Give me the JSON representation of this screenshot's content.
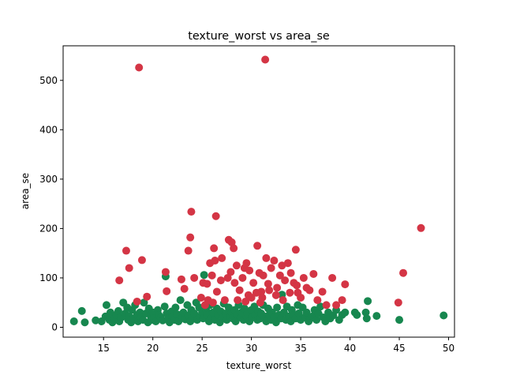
{
  "chart_data": {
    "type": "scatter",
    "title": "texture_worst vs area_se",
    "xlabel": "texture_worst",
    "ylabel": "area_se",
    "xlim": [
      10.9,
      50.6
    ],
    "ylim": [
      -20,
      570
    ],
    "xticks": [
      15,
      20,
      25,
      30,
      35,
      40,
      45,
      50
    ],
    "yticks": [
      0,
      100,
      200,
      300,
      400,
      500
    ],
    "grid": false,
    "legend": "none",
    "colors": {
      "red": "#d43545",
      "green": "#17874f"
    },
    "series": [
      {
        "color": "#17874f",
        "points": [
          [
            12.0,
            12
          ],
          [
            12.8,
            33
          ],
          [
            13.1,
            10
          ],
          [
            14.2,
            14
          ],
          [
            14.8,
            12
          ],
          [
            15.2,
            22
          ],
          [
            15.3,
            45
          ],
          [
            15.6,
            15
          ],
          [
            15.7,
            30
          ],
          [
            15.9,
            10
          ],
          [
            16.1,
            18
          ],
          [
            16.3,
            25
          ],
          [
            16.5,
            33
          ],
          [
            16.6,
            12
          ],
          [
            16.8,
            20
          ],
          [
            17.0,
            50
          ],
          [
            17.2,
            28
          ],
          [
            17.4,
            40
          ],
          [
            17.5,
            15
          ],
          [
            17.6,
            22
          ],
          [
            17.8,
            10
          ],
          [
            17.9,
            35
          ],
          [
            18.0,
            18
          ],
          [
            18.2,
            45
          ],
          [
            18.4,
            25
          ],
          [
            18.5,
            12
          ],
          [
            18.7,
            30
          ],
          [
            18.8,
            20
          ],
          [
            19.0,
            15
          ],
          [
            19.1,
            50
          ],
          [
            19.3,
            28
          ],
          [
            19.5,
            10
          ],
          [
            19.6,
            38
          ],
          [
            19.8,
            22
          ],
          [
            19.9,
            15
          ],
          [
            20.0,
            30
          ],
          [
            20.1,
            18
          ],
          [
            20.3,
            12
          ],
          [
            20.5,
            35
          ],
          [
            20.6,
            25
          ],
          [
            20.8,
            20
          ],
          [
            21.0,
            14
          ],
          [
            21.2,
            42
          ],
          [
            21.3,
            103
          ],
          [
            21.4,
            28
          ],
          [
            21.6,
            18
          ],
          [
            21.7,
            10
          ],
          [
            21.9,
            32
          ],
          [
            22.0,
            22
          ],
          [
            22.2,
            15
          ],
          [
            22.3,
            40
          ],
          [
            22.5,
            26
          ],
          [
            22.6,
            12
          ],
          [
            22.8,
            55
          ],
          [
            23.0,
            20
          ],
          [
            23.1,
            30
          ],
          [
            23.3,
            16
          ],
          [
            23.5,
            45
          ],
          [
            23.6,
            24
          ],
          [
            23.8,
            12
          ],
          [
            23.9,
            35
          ],
          [
            24.0,
            20
          ],
          [
            24.2,
            28
          ],
          [
            24.4,
            50
          ],
          [
            24.5,
            15
          ],
          [
            24.7,
            40
          ],
          [
            24.8,
            22
          ],
          [
            25.0,
            30
          ],
          [
            25.1,
            18
          ],
          [
            25.2,
            106
          ],
          [
            25.4,
            35
          ],
          [
            25.5,
            25
          ],
          [
            25.7,
            12
          ],
          [
            25.8,
            45
          ],
          [
            26.0,
            20
          ],
          [
            26.1,
            30
          ],
          [
            26.3,
            15
          ],
          [
            26.5,
            38
          ],
          [
            26.6,
            25
          ],
          [
            26.8,
            10
          ],
          [
            26.9,
            32
          ],
          [
            27.1,
            20
          ],
          [
            27.2,
            48
          ],
          [
            27.4,
            28
          ],
          [
            27.5,
            15
          ],
          [
            27.7,
            40
          ],
          [
            27.8,
            22
          ],
          [
            28.0,
            30
          ],
          [
            28.1,
            18
          ],
          [
            28.3,
            35
          ],
          [
            28.4,
            12
          ],
          [
            28.6,
            25
          ],
          [
            28.7,
            45
          ],
          [
            28.9,
            20
          ],
          [
            29.0,
            30
          ],
          [
            29.2,
            15
          ],
          [
            29.3,
            38
          ],
          [
            29.5,
            22
          ],
          [
            29.6,
            28
          ],
          [
            29.8,
            12
          ],
          [
            30.0,
            35
          ],
          [
            30.1,
            20
          ],
          [
            30.3,
            42
          ],
          [
            30.4,
            25
          ],
          [
            30.6,
            15
          ],
          [
            30.7,
            32
          ],
          [
            30.9,
            18
          ],
          [
            31.0,
            28
          ],
          [
            31.2,
            45
          ],
          [
            31.3,
            22
          ],
          [
            31.5,
            12
          ],
          [
            31.7,
            38
          ],
          [
            31.8,
            25
          ],
          [
            32.0,
            15
          ],
          [
            32.1,
            30
          ],
          [
            32.3,
            20
          ],
          [
            32.5,
            10
          ],
          [
            32.6,
            40
          ],
          [
            32.8,
            25
          ],
          [
            33.0,
            18
          ],
          [
            33.1,
            66
          ],
          [
            33.3,
            30
          ],
          [
            33.5,
            15
          ],
          [
            33.6,
            42
          ],
          [
            33.8,
            22
          ],
          [
            34.0,
            12
          ],
          [
            34.1,
            35
          ],
          [
            34.3,
            25
          ],
          [
            34.5,
            18
          ],
          [
            34.7,
            45
          ],
          [
            34.8,
            28
          ],
          [
            35.0,
            15
          ],
          [
            35.2,
            40
          ],
          [
            35.4,
            20
          ],
          [
            35.6,
            30
          ],
          [
            35.8,
            12
          ],
          [
            36.0,
            18
          ],
          [
            36.2,
            22
          ],
          [
            36.4,
            35
          ],
          [
            36.6,
            15
          ],
          [
            36.8,
            28
          ],
          [
            37.0,
            42
          ],
          [
            37.3,
            20
          ],
          [
            37.5,
            12
          ],
          [
            37.8,
            30
          ],
          [
            38.0,
            18
          ],
          [
            38.3,
            24
          ],
          [
            38.6,
            35
          ],
          [
            38.9,
            15
          ],
          [
            39.2,
            25
          ],
          [
            39.5,
            30
          ],
          [
            40.5,
            30
          ],
          [
            40.7,
            25
          ],
          [
            41.6,
            30
          ],
          [
            41.7,
            18
          ],
          [
            41.8,
            53
          ],
          [
            42.7,
            23
          ],
          [
            45.0,
            15
          ],
          [
            49.5,
            24
          ]
        ]
      },
      {
        "color": "#d43545",
        "points": [
          [
            18.6,
            526
          ],
          [
            31.4,
            542
          ],
          [
            47.2,
            201
          ],
          [
            45.4,
            110
          ],
          [
            44.9,
            50
          ],
          [
            23.9,
            234
          ],
          [
            26.4,
            225
          ],
          [
            26.2,
            160
          ],
          [
            27.7,
            177
          ],
          [
            28.0,
            172
          ],
          [
            28.2,
            160
          ],
          [
            17.3,
            155
          ],
          [
            23.6,
            155
          ],
          [
            18.9,
            136
          ],
          [
            17.6,
            120
          ],
          [
            16.6,
            95
          ],
          [
            21.3,
            112
          ],
          [
            19.4,
            62
          ],
          [
            18.4,
            52
          ],
          [
            23.8,
            182
          ],
          [
            24.2,
            100
          ],
          [
            22.9,
            97
          ],
          [
            21.4,
            73
          ],
          [
            23.2,
            78
          ],
          [
            25.1,
            90
          ],
          [
            25.5,
            88
          ],
          [
            25.8,
            130
          ],
          [
            26.0,
            105
          ],
          [
            26.3,
            135
          ],
          [
            26.5,
            72
          ],
          [
            26.9,
            95
          ],
          [
            27.0,
            140
          ],
          [
            27.3,
            55
          ],
          [
            27.6,
            100
          ],
          [
            27.9,
            112
          ],
          [
            28.3,
            90
          ],
          [
            28.5,
            125
          ],
          [
            28.8,
            75
          ],
          [
            29.1,
            100
          ],
          [
            29.3,
            120
          ],
          [
            29.5,
            130
          ],
          [
            29.8,
            115
          ],
          [
            30.0,
            60
          ],
          [
            30.2,
            90
          ],
          [
            30.6,
            165
          ],
          [
            30.8,
            110
          ],
          [
            31.0,
            72
          ],
          [
            31.2,
            105
          ],
          [
            31.5,
            140
          ],
          [
            31.7,
            88
          ],
          [
            32.0,
            120
          ],
          [
            32.3,
            135
          ],
          [
            32.6,
            80
          ],
          [
            32.9,
            105
          ],
          [
            33.1,
            125
          ],
          [
            33.4,
            95
          ],
          [
            33.7,
            130
          ],
          [
            34.0,
            110
          ],
          [
            34.3,
            90
          ],
          [
            34.5,
            157
          ],
          [
            34.7,
            70
          ],
          [
            35.0,
            60
          ],
          [
            35.3,
            100
          ],
          [
            35.6,
            80
          ],
          [
            35.9,
            75
          ],
          [
            36.3,
            108
          ],
          [
            36.7,
            55
          ],
          [
            37.2,
            72
          ],
          [
            37.6,
            45
          ],
          [
            38.2,
            100
          ],
          [
            38.6,
            45
          ],
          [
            39.2,
            55
          ],
          [
            39.5,
            87
          ],
          [
            24.9,
            60
          ],
          [
            25.3,
            45
          ],
          [
            25.6,
            55
          ],
          [
            26.1,
            50
          ],
          [
            28.6,
            55
          ],
          [
            29.7,
            65
          ],
          [
            30.5,
            70
          ],
          [
            31.1,
            60
          ],
          [
            31.8,
            75
          ],
          [
            32.5,
            65
          ],
          [
            33.2,
            55
          ],
          [
            33.9,
            70
          ],
          [
            34.6,
            85
          ],
          [
            30.9,
            50
          ],
          [
            29.4,
            52
          ]
        ]
      }
    ]
  }
}
